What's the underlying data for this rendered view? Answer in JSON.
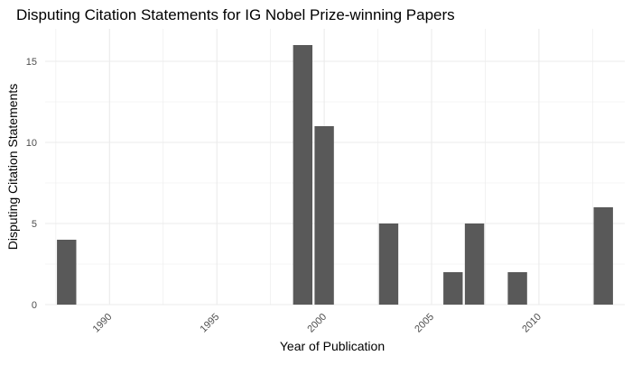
{
  "chart_data": {
    "type": "bar",
    "title": "Disputing Citation Statements for IG Nobel Prize-winning Papers",
    "xlabel": "Year of Publication",
    "ylabel": "Disputing Citation Statements",
    "x": [
      1988,
      1999,
      2000,
      2003,
      2006,
      2007,
      2009,
      2013
    ],
    "values": [
      4,
      16,
      11,
      5,
      2,
      5,
      2,
      6
    ],
    "xlim": [
      1987,
      2014
    ],
    "ylim": [
      0,
      17
    ],
    "x_ticks": [
      1990,
      1995,
      2000,
      2005,
      2010
    ],
    "y_ticks": [
      0,
      5,
      10,
      15
    ],
    "grid": true,
    "legend": "none",
    "bar_color": "#595959",
    "grid_color": "#ebebeb"
  }
}
